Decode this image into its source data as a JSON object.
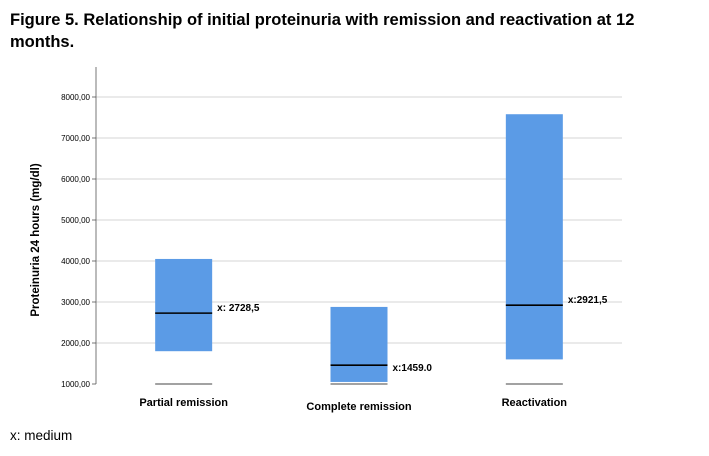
{
  "title": "Figure 5. Relationship of initial proteinuria with remission and reactivation at 12 months.",
  "footnote": "x: medium",
  "chart_data": {
    "type": "bar",
    "subtype": "floating-range-with-median",
    "ylabel": "Proteinuria 24 hours (mg/dl)",
    "xlabel": "",
    "ylim": [
      1000,
      8000
    ],
    "yticks": [
      "1000,00",
      "2000,00",
      "3000,00",
      "4000,00",
      "5000,00",
      "6000,00",
      "7000,00",
      "8000,00"
    ],
    "grid": true,
    "bar_color": "#5b9be6",
    "median_color": "#000000",
    "categories": [
      "Partial remission",
      "Complete remission",
      "Reactivation"
    ],
    "series": [
      {
        "low": [
          1800,
          1050,
          1600
        ],
        "high": [
          4050,
          2880,
          7580
        ],
        "median": [
          2728.5,
          1459.0,
          2921.5
        ],
        "median_labels": [
          "x: 2728,5",
          "x:1459.0",
          "x:2921,5"
        ]
      }
    ]
  }
}
